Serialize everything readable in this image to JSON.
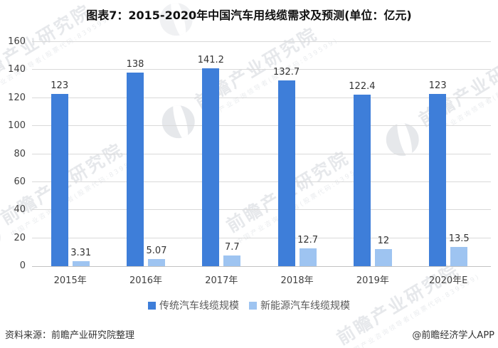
{
  "title": "图表7：2015-2020年中国汽车用线缆需求及预测(单位：亿元)",
  "chart_data": {
    "type": "bar",
    "categories": [
      "2015年",
      "2016年",
      "2017年",
      "2018年",
      "2019年",
      "2020年E"
    ],
    "series": [
      {
        "name": "传统汽车线缆规模",
        "color": "#3e7ed9",
        "values": [
          123,
          138,
          141.2,
          132.7,
          122.4,
          123
        ]
      },
      {
        "name": "新能源汽车线缆规模",
        "color": "#9ec4f1",
        "values": [
          3.31,
          5.07,
          7.7,
          12.7,
          12,
          13.5
        ]
      }
    ],
    "title": "图表7：2015-2020年中国汽车用线缆需求及预测(单位：亿元)",
    "xlabel": "",
    "ylabel": "",
    "ylim": [
      0,
      160
    ],
    "ytick_step": 20,
    "grid": true,
    "value_labels": true,
    "legend_position": "bottom"
  },
  "footer": {
    "source": "资料来源：前瞻产业研究院整理",
    "credit": "@前瞻经济学人APP"
  },
  "watermark": {
    "text": "前瞻产业研究院",
    "subtext": "中国产业咨询领导者(股票代码:839599)"
  },
  "colors": {
    "bar_primary": "#3e7ed9",
    "bar_secondary": "#9ec4f1",
    "gridline": "#d9d9d9",
    "axis_line": "#c2c2c2",
    "title_text": "#111111",
    "tick_text": "#404040",
    "value_text": "#333333",
    "legend_text": "#595959",
    "watermark": "#c5cad1"
  }
}
